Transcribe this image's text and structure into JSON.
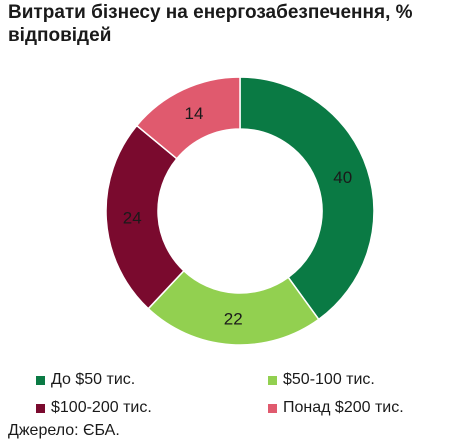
{
  "chart_data": {
    "type": "pie",
    "title": "Витрати бізнесу на енергозабезпечення, % відповідей",
    "categories": [
      "До $50 тис.",
      "$50-100 тис.",
      "$100-200 тис.",
      "Понад $200 тис."
    ],
    "values": [
      40,
      22,
      24,
      14
    ],
    "colors": [
      "#0a7a44",
      "#92d050",
      "#7a0a2e",
      "#e05a6e"
    ],
    "donut": true,
    "legend_position": "bottom",
    "source": "Джерело: ЄБА."
  }
}
